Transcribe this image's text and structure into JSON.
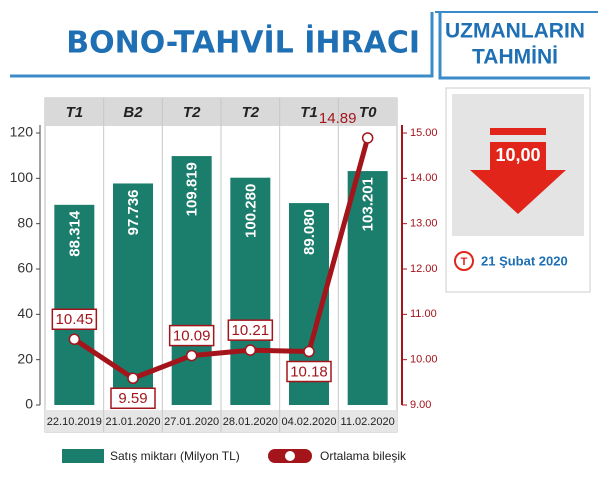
{
  "chart_data": {
    "type": "bar",
    "title": "BONO-TAHVİL İHRACI",
    "codes": [
      "T1",
      "B2",
      "T2",
      "T2",
      "T1",
      "T0"
    ],
    "categories": [
      "22.10.2019",
      "21.01.2020",
      "27.01.2020",
      "28.01.2020",
      "04.02.2020",
      "11.02.2020"
    ],
    "series": [
      {
        "name": "Satış miktarı (Milyon TL)",
        "type": "bar",
        "color": "#1b7d6c",
        "values": [
          88.314,
          97.736,
          109.819,
          100.28,
          89.08,
          103.201
        ],
        "value_labels": [
          "88.314",
          "97.736",
          "109.819",
          "100.280",
          "89.080",
          "103.201"
        ]
      },
      {
        "name": "Ortalama bileşik",
        "type": "line",
        "color": "#a3151b",
        "axis": "y2",
        "values": [
          10.45,
          9.59,
          10.09,
          10.21,
          10.18,
          14.89
        ]
      }
    ],
    "ylim": [
      0,
      120
    ],
    "yticks": [
      0,
      20,
      40,
      60,
      80,
      100,
      120
    ],
    "y2lim": [
      9,
      15
    ],
    "y2ticks": [
      {
        "value": 9,
        "label": "9.00"
      },
      {
        "value": 10,
        "label": "10.00"
      },
      {
        "value": 11,
        "label": "11.00"
      },
      {
        "value": 12,
        "label": "12.00"
      },
      {
        "value": 13,
        "label": "13.00"
      },
      {
        "value": 14,
        "label": "14.00"
      },
      {
        "value": 15,
        "label": "15.00"
      }
    ]
  },
  "forecast": {
    "title_line1": "UZMANLARIN",
    "title_line2": "TAHMİNİ",
    "value": "10,00",
    "date": "21 Şubat 2020",
    "logo": "T"
  }
}
